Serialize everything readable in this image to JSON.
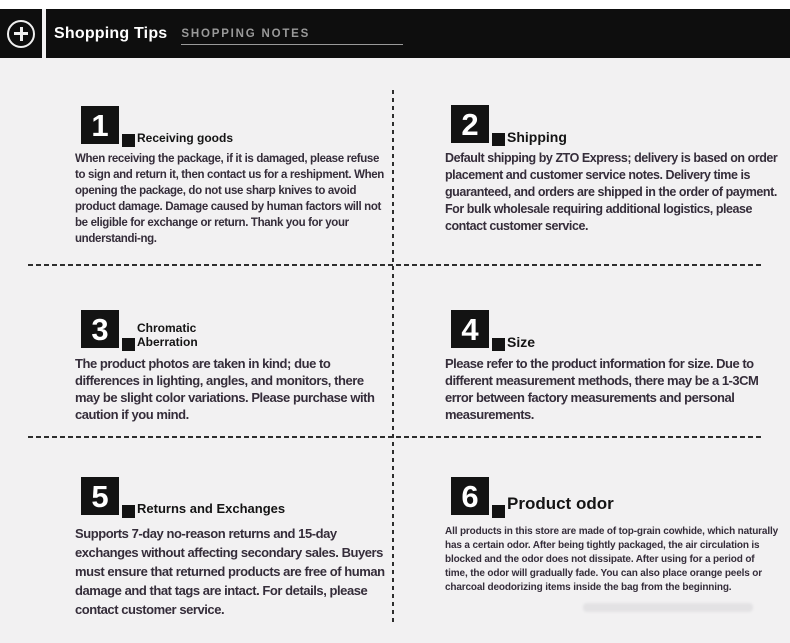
{
  "header": {
    "title": "Shopping Tips",
    "subtitle": "SHOPPING NOTES",
    "icon": "plus-circle-icon"
  },
  "colors": {
    "header_bar": "#0e0e0e",
    "background": "#f2f1f2",
    "badge_black": "#131313",
    "body_text": "#352d3a",
    "label_text": "#141414",
    "subtitle_gray": "#9a9a9a",
    "dash_gray": "#2e2e2e"
  },
  "sections": [
    {
      "number": "1",
      "label": "Receiving goods",
      "body": "When receiving the package, if it is damaged, please refuse to sign and return it, then contact us for a reshipment. When opening the package, do not use sharp knives to avoid product damage. Damage caused by human factors will not be eligible for exchange or return. Thank you for your understandi-ng."
    },
    {
      "number": "2",
      "label": "Shipping",
      "body": "Default shipping by ZTO Express; delivery is based on order placement and customer service notes. Delivery time is guaranteed, and orders are shipped in the order of payment. For bulk wholesale requiring additional logistics, please contact customer service."
    },
    {
      "number": "3",
      "label": "Chromatic\nAberration",
      "body": "The product photos are taken in kind; due to differences in lighting, angles, and monitors, there may be slight color variations. Please purchase with caution if you mind."
    },
    {
      "number": "4",
      "label": "Size",
      "body": "Please refer to the product information for size. Due to different measurement methods, there may be a 1-3CM error between factory measurements and personal measurements."
    },
    {
      "number": "5",
      "label": "Returns and Exchanges",
      "body": "Supports 7-day no-reason returns and 15-day exchanges without affecting secondary sales. Buyers must ensure that returned products are free of human damage and that tags are intact. For details, please contact customer service."
    },
    {
      "number": "6",
      "label": "Product odor",
      "body": "All products in this store are made of top-grain cowhide, which naturally has a certain odor. After being tightly packaged, the air circulation is blocked and the odor does not dissipate. After using for a period of time, the odor will gradually fade. You can also place orange peels or charcoal deodorizing items inside the bag from the beginning."
    }
  ]
}
